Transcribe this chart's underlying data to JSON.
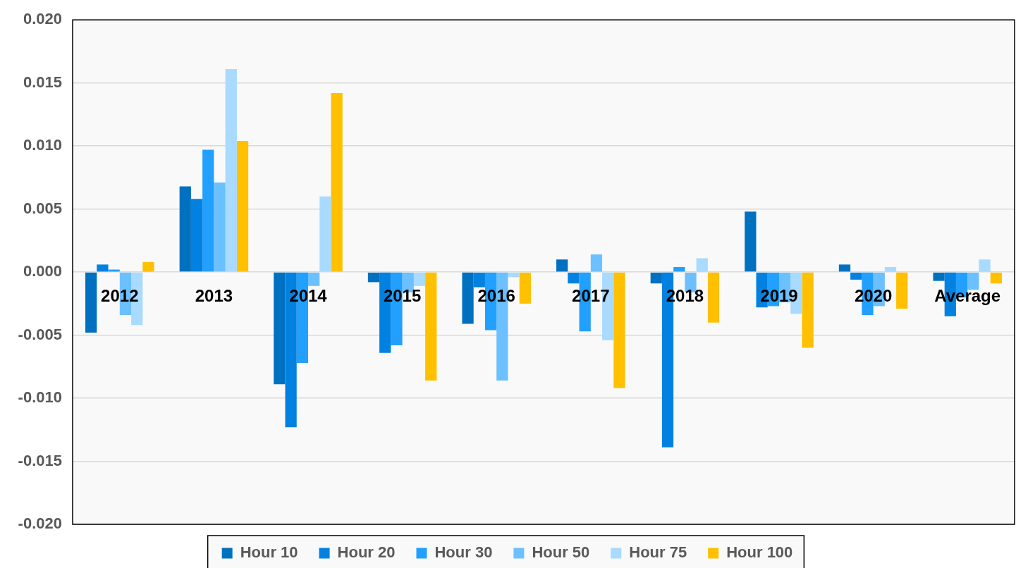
{
  "chart_data": {
    "type": "bar",
    "categories": [
      "2012",
      "2013",
      "2014",
      "2015",
      "2016",
      "2017",
      "2018",
      "2019",
      "2020",
      "Average"
    ],
    "series": [
      {
        "name": "Hour 10",
        "color": "#0070c0",
        "values": [
          -0.0048,
          0.0068,
          -0.0089,
          -0.0008,
          -0.0041,
          0.001,
          -0.0009,
          0.0048,
          0.0006,
          -0.0007
        ]
      },
      {
        "name": "Hour 20",
        "color": "#0281e0",
        "values": [
          0.0006,
          0.0058,
          -0.0123,
          -0.0064,
          -0.0012,
          -0.0009,
          -0.0139,
          -0.0028,
          -0.0006,
          -0.0035
        ]
      },
      {
        "name": "Hour 30",
        "color": "#21a0ff",
        "values": [
          0.0002,
          0.0097,
          -0.0072,
          -0.0058,
          -0.0046,
          -0.0047,
          0.0004,
          -0.0027,
          -0.0034,
          -0.002
        ]
      },
      {
        "name": "Hour 50",
        "color": "#6cc0ff",
        "values": [
          -0.0034,
          0.0071,
          -0.0011,
          -0.0016,
          -0.0086,
          0.0014,
          -0.0016,
          -0.0024,
          -0.0027,
          -0.0014
        ]
      },
      {
        "name": "Hour 75",
        "color": "#a9daff",
        "values": [
          -0.0042,
          0.0161,
          0.006,
          -0.0011,
          -0.0004,
          -0.0054,
          0.0011,
          -0.0033,
          0.0004,
          0.001
        ]
      },
      {
        "name": "Hour 100",
        "color": "#ffc000",
        "values": [
          0.0008,
          0.0104,
          0.0142,
          -0.0086,
          -0.0025,
          -0.0092,
          -0.004,
          -0.006,
          -0.0029,
          -0.0009
        ]
      }
    ],
    "ylim": [
      -0.02,
      0.02
    ],
    "yticks": [
      {
        "value": -0.02,
        "label": "-0.020"
      },
      {
        "value": -0.015,
        "label": "-0.015"
      },
      {
        "value": -0.01,
        "label": "-0.010"
      },
      {
        "value": -0.005,
        "label": "-0.005"
      },
      {
        "value": 0,
        "label": "0.000"
      },
      {
        "value": 0.005,
        "label": "0.005"
      },
      {
        "value": 0.01,
        "label": "0.010"
      },
      {
        "value": 0.015,
        "label": "0.015"
      },
      {
        "value": 0.02,
        "label": "0.020"
      }
    ],
    "grid": "y",
    "legend": "bottom"
  }
}
